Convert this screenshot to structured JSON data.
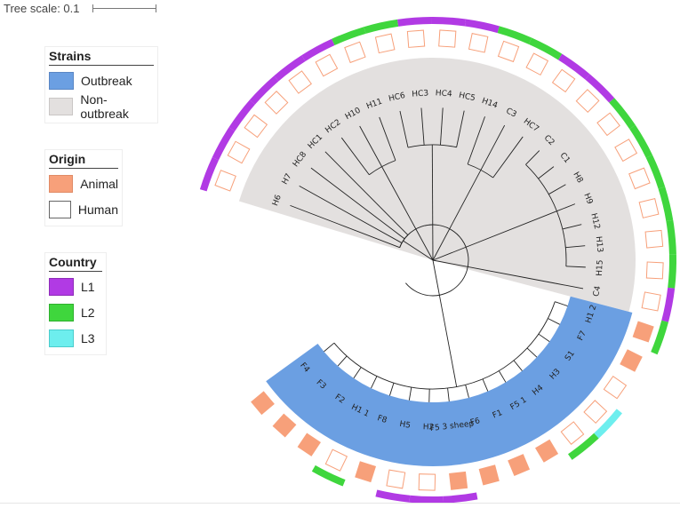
{
  "tree_scale": {
    "label": "Tree scale: 0.1"
  },
  "legends": {
    "strains": {
      "title": "Strains",
      "items": [
        {
          "label": "Outbreak",
          "color": "#6b9fe2"
        },
        {
          "label": "Non-outbreak",
          "color": "#e3e0df"
        }
      ]
    },
    "origin": {
      "title": "Origin",
      "items": [
        {
          "label": "Animal",
          "color": "#f7a07a"
        },
        {
          "label": "Human",
          "color": "#ffffff"
        }
      ]
    },
    "country": {
      "title": "Country",
      "items": [
        {
          "label": "L1",
          "color": "#b13ae4"
        },
        {
          "label": "L2",
          "color": "#3fd63d"
        },
        {
          "label": "L3",
          "color": "#6deeee"
        }
      ]
    }
  },
  "colors": {
    "outbreak": "#6b9fe2",
    "non_outbreak": "#e3e0df",
    "animal": "#f7a07a",
    "human_border": "#f7a07a",
    "L1": "#b13ae4",
    "L2": "#3fd63d",
    "L3": "#6deeee"
  },
  "leaves": [
    {
      "label": "H6",
      "strain": "non-outbreak",
      "origin": "human",
      "country": "L1"
    },
    {
      "label": "H7",
      "strain": "non-outbreak",
      "origin": "human",
      "country": "L1"
    },
    {
      "label": "HC8",
      "strain": "non-outbreak",
      "origin": "human",
      "country": "L1"
    },
    {
      "label": "HC1",
      "strain": "non-outbreak",
      "origin": "human",
      "country": "L1"
    },
    {
      "label": "HC2",
      "strain": "non-outbreak",
      "origin": "human",
      "country": "L1"
    },
    {
      "label": "H10",
      "strain": "non-outbreak",
      "origin": "human",
      "country": "L1"
    },
    {
      "label": "H11",
      "strain": "non-outbreak",
      "origin": "human",
      "country": "L2"
    },
    {
      "label": "HC6",
      "strain": "non-outbreak",
      "origin": "human",
      "country": "L2"
    },
    {
      "label": "HC3",
      "strain": "non-outbreak",
      "origin": "human",
      "country": "L1"
    },
    {
      "label": "HC4",
      "strain": "non-outbreak",
      "origin": "human",
      "country": "L1"
    },
    {
      "label": "HC5",
      "strain": "non-outbreak",
      "origin": "human",
      "country": "L1"
    },
    {
      "label": "H14",
      "strain": "non-outbreak",
      "origin": "human",
      "country": "L2"
    },
    {
      "label": "C3",
      "strain": "non-outbreak",
      "origin": "human",
      "country": "L2"
    },
    {
      "label": "HC7",
      "strain": "non-outbreak",
      "origin": "human",
      "country": "L1"
    },
    {
      "label": "C2",
      "strain": "non-outbreak",
      "origin": "human",
      "country": "L1"
    },
    {
      "label": "C1",
      "strain": "non-outbreak",
      "origin": "human",
      "country": "L2"
    },
    {
      "label": "H8",
      "strain": "non-outbreak",
      "origin": "human",
      "country": "L2"
    },
    {
      "label": "H9",
      "strain": "non-outbreak",
      "origin": "human",
      "country": "L2"
    },
    {
      "label": "H12",
      "strain": "non-outbreak",
      "origin": "human",
      "country": "L2"
    },
    {
      "label": "H13",
      "strain": "non-outbreak",
      "origin": "human",
      "country": "L2"
    },
    {
      "label": "H15",
      "strain": "non-outbreak",
      "origin": "human",
      "country": "L2"
    },
    {
      "label": "C4",
      "strain": "non-outbreak",
      "origin": "human",
      "country": "L1"
    },
    {
      "label": "H1 2",
      "strain": "outbreak",
      "origin": "animal",
      "country": "L2"
    },
    {
      "label": "F7",
      "strain": "outbreak",
      "origin": "animal",
      "country": ""
    },
    {
      "label": "S1",
      "strain": "outbreak",
      "origin": "human",
      "country": ""
    },
    {
      "label": "H3",
      "strain": "outbreak",
      "origin": "human",
      "country": "L3"
    },
    {
      "label": "H4",
      "strain": "outbreak",
      "origin": "human",
      "country": "L2"
    },
    {
      "label": "F5 1",
      "strain": "outbreak",
      "origin": "animal",
      "country": ""
    },
    {
      "label": "F1",
      "strain": "outbreak",
      "origin": "animal",
      "country": ""
    },
    {
      "label": "F6",
      "strain": "outbreak",
      "origin": "animal",
      "country": ""
    },
    {
      "label": "F5 3 sheep",
      "strain": "outbreak",
      "origin": "animal",
      "country": "L1"
    },
    {
      "label": "H2",
      "strain": "outbreak",
      "origin": "human",
      "country": "L1"
    },
    {
      "label": "H5",
      "strain": "outbreak",
      "origin": "human",
      "country": "L1"
    },
    {
      "label": "F8",
      "strain": "outbreak",
      "origin": "animal",
      "country": ""
    },
    {
      "label": "H1 1",
      "strain": "outbreak",
      "origin": "human",
      "country": "L2"
    },
    {
      "label": "F2",
      "strain": "outbreak",
      "origin": "animal",
      "country": ""
    },
    {
      "label": "F3",
      "strain": "outbreak",
      "origin": "animal",
      "country": ""
    },
    {
      "label": "F4",
      "strain": "outbreak",
      "origin": "animal",
      "country": ""
    }
  ]
}
